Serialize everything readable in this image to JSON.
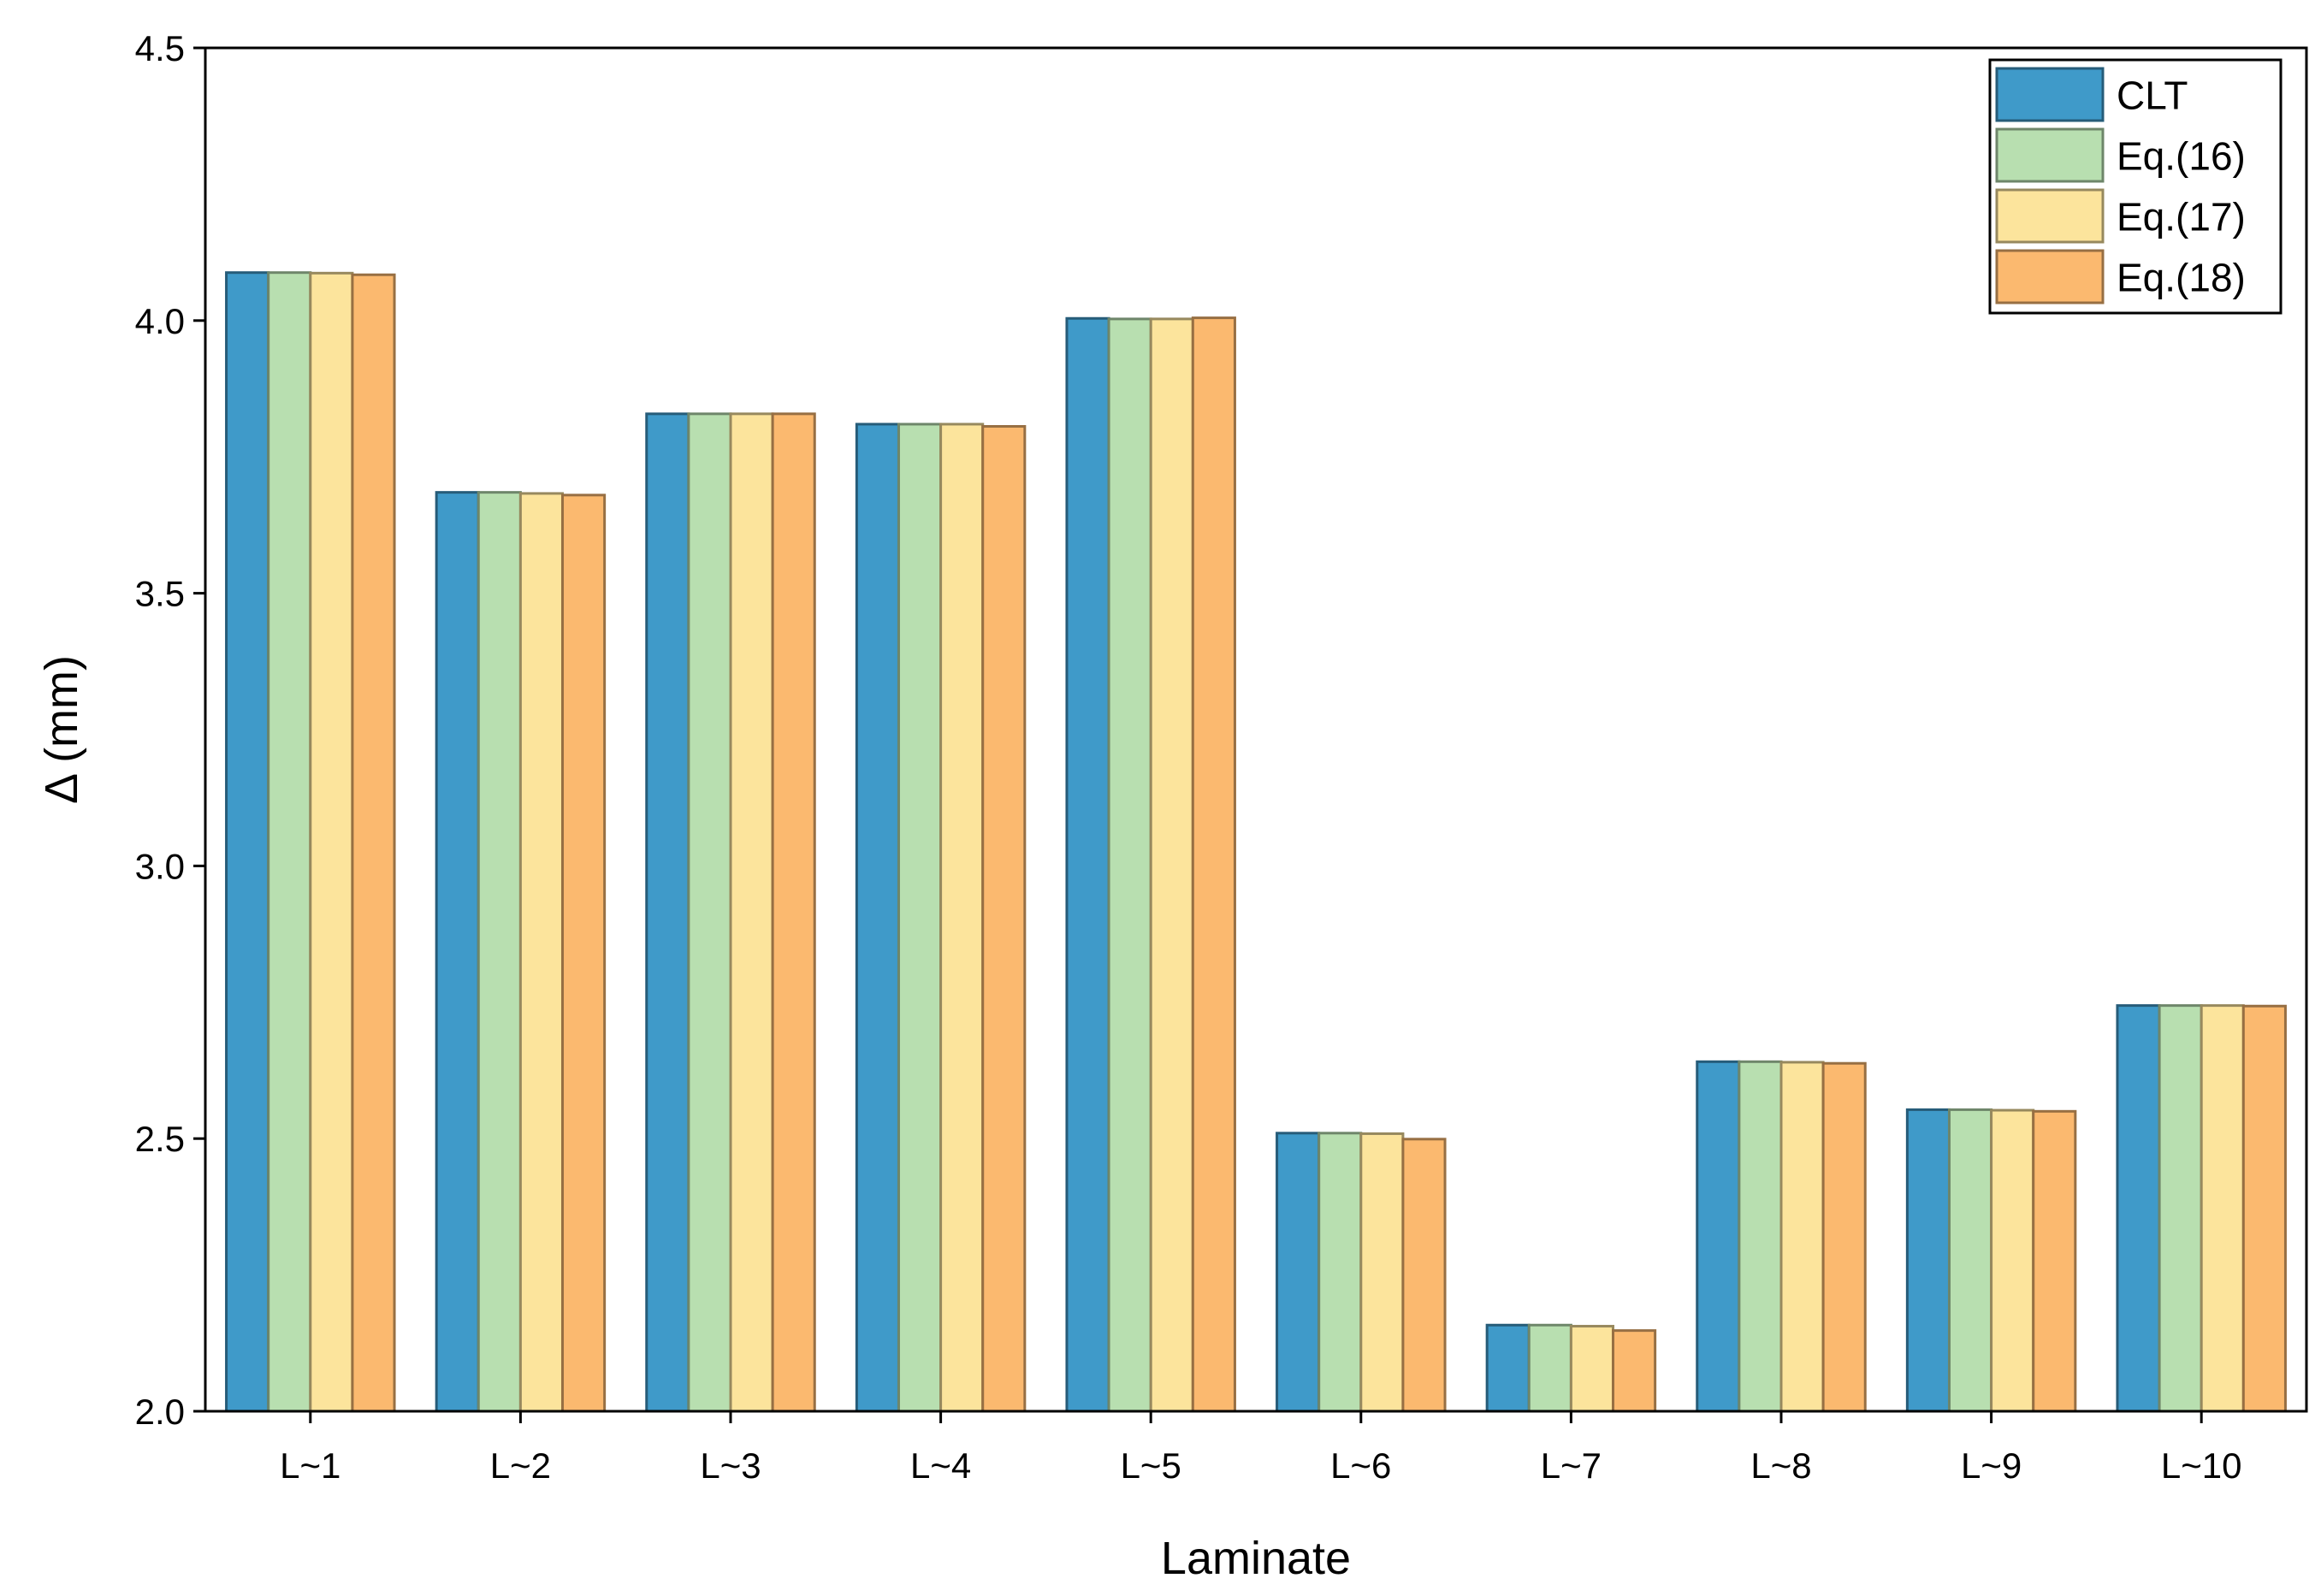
{
  "chart_data": {
    "type": "bar",
    "x_label": "Laminate",
    "y_label": "Δ (mm)",
    "categories": [
      "L~1",
      "L~2",
      "L~3",
      "L~4",
      "L~5",
      "L~6",
      "L~7",
      "L~8",
      "L~9",
      "L~10"
    ],
    "series": [
      {
        "name": "CLT",
        "color": "#3f9ac9",
        "values": [
          4.088,
          3.685,
          3.829,
          3.81,
          4.004,
          2.51,
          2.158,
          2.641,
          2.553,
          2.744
        ]
      },
      {
        "name": "Eq.(16)",
        "color": "#b8dfb0",
        "values": [
          4.088,
          3.685,
          3.829,
          3.81,
          4.003,
          2.51,
          2.158,
          2.641,
          2.553,
          2.744
        ]
      },
      {
        "name": "Eq.(17)",
        "color": "#fce49c",
        "values": [
          4.087,
          3.683,
          3.829,
          3.81,
          4.003,
          2.509,
          2.156,
          2.64,
          2.552,
          2.744
        ]
      },
      {
        "name": "Eq.(18)",
        "color": "#fbb96f",
        "values": [
          4.084,
          3.68,
          3.829,
          3.806,
          4.005,
          2.499,
          2.148,
          2.638,
          2.55,
          2.743
        ]
      }
    ],
    "ylim": [
      2.0,
      4.5
    ],
    "yticks": [
      {
        "value": 2.0,
        "label": "2.0"
      },
      2.5,
      {
        "value": 3.0,
        "label": "3.0"
      },
      3.5,
      {
        "value": 4.0,
        "label": "4.0"
      },
      4.5
    ],
    "legend": "upper right"
  }
}
